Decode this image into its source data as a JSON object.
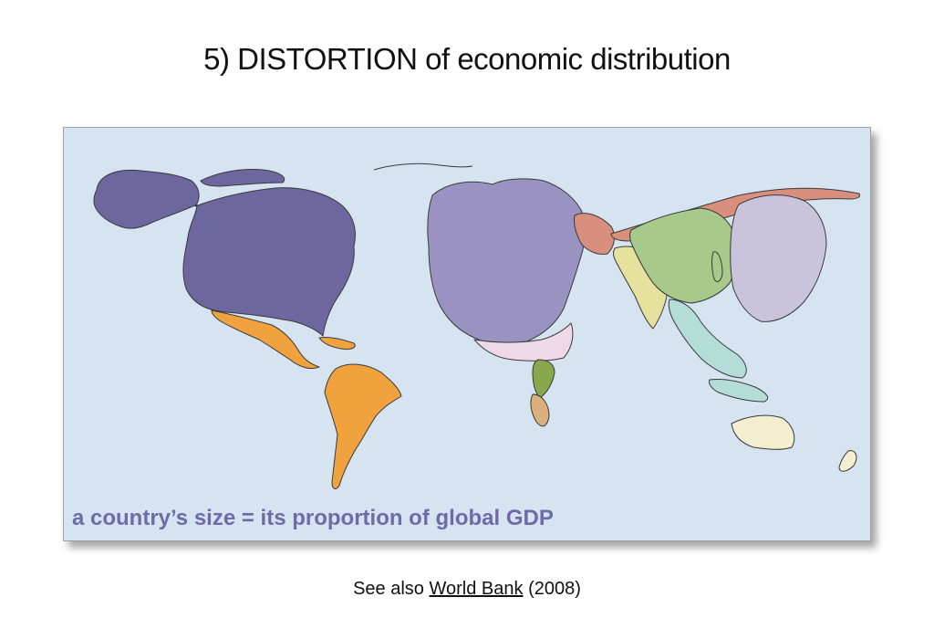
{
  "slide": {
    "title": "5) DISTORTION of economic distribution"
  },
  "map": {
    "caption": "a country’s size = its proportion of global GDP",
    "region_colors": {
      "north_america": "#6e679f",
      "latin_america": "#efa23e",
      "europe": "#9a93c1",
      "middle_east": "#d98f7e",
      "africa": "#88a84e",
      "south_africa": "#d9b07e",
      "south_asia": "#e6e29d",
      "china": "#a7c98a",
      "japan_east_asia": "#c9c4dc",
      "southeast_asia": "#b4ddd8",
      "oceania": "#f3eed0",
      "ocean": "#d5e4f0"
    }
  },
  "footer": {
    "prefix": "See also",
    "link_text": "World Bank",
    "suffix": "(2008)"
  }
}
